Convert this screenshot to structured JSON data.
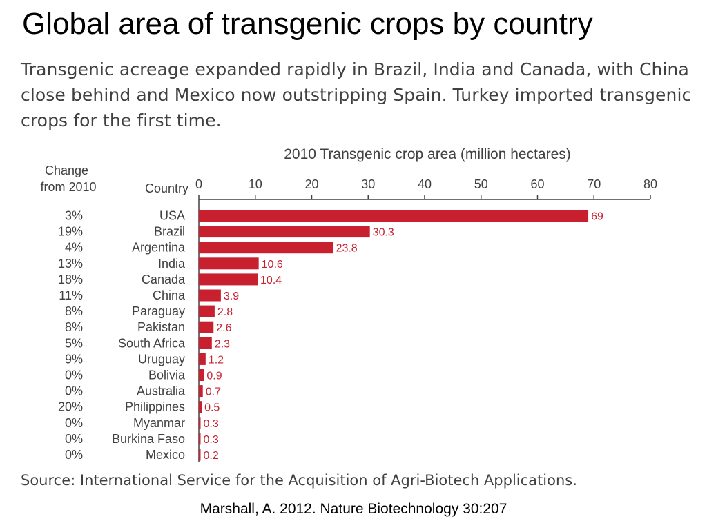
{
  "title": "Global area of transgenic crops by country",
  "subtitle": "Transgenic acreage expanded rapidly in Brazil, India and Canada, with China close behind and Mexico now outstripping Spain. Turkey imported transgenic crops for the first time.",
  "source": "Source: International Service for the Acquisition of Agri-Biotech Applications.",
  "citation": "Marshall, A. 2012. Nature Biotechnology 30:207",
  "colors": {
    "bar": "#c8202f",
    "text": "#404040",
    "axis": "#404040"
  },
  "chart_data": {
    "type": "bar",
    "orientation": "horizontal",
    "title": "2010 Transgenic crop area (million hectares)",
    "column_headers": {
      "change": "Change from 2010",
      "country": "Country"
    },
    "categories": [
      "USA",
      "Brazil",
      "Argentina",
      "India",
      "Canada",
      "China",
      "Paraguay",
      "Pakistan",
      "South Africa",
      "Uruguay",
      "Bolivia",
      "Australia",
      "Philippines",
      "Myanmar",
      "Burkina Faso",
      "Mexico"
    ],
    "change": [
      "3%",
      "19%",
      "4%",
      "13%",
      "18%",
      "11%",
      "8%",
      "8%",
      "5%",
      "9%",
      "0%",
      "0%",
      "20%",
      "0%",
      "0%",
      "0%"
    ],
    "values": [
      69,
      30.3,
      23.8,
      10.6,
      10.4,
      3.9,
      2.8,
      2.6,
      2.3,
      1.2,
      0.9,
      0.7,
      0.5,
      0.3,
      0.3,
      0.2
    ],
    "value_labels": [
      "69",
      "30.3",
      "23.8",
      "10.6",
      "10.4",
      "3.9",
      "2.8",
      "2.6",
      "2.3",
      "1.2",
      "0.9",
      "0.7",
      "0.5",
      "0.3",
      "0.3",
      "0.2"
    ],
    "xlim": [
      0,
      80
    ],
    "xticks": [
      0,
      10,
      20,
      30,
      40,
      50,
      60,
      70,
      80
    ],
    "axis_position": "top",
    "grid": false
  }
}
